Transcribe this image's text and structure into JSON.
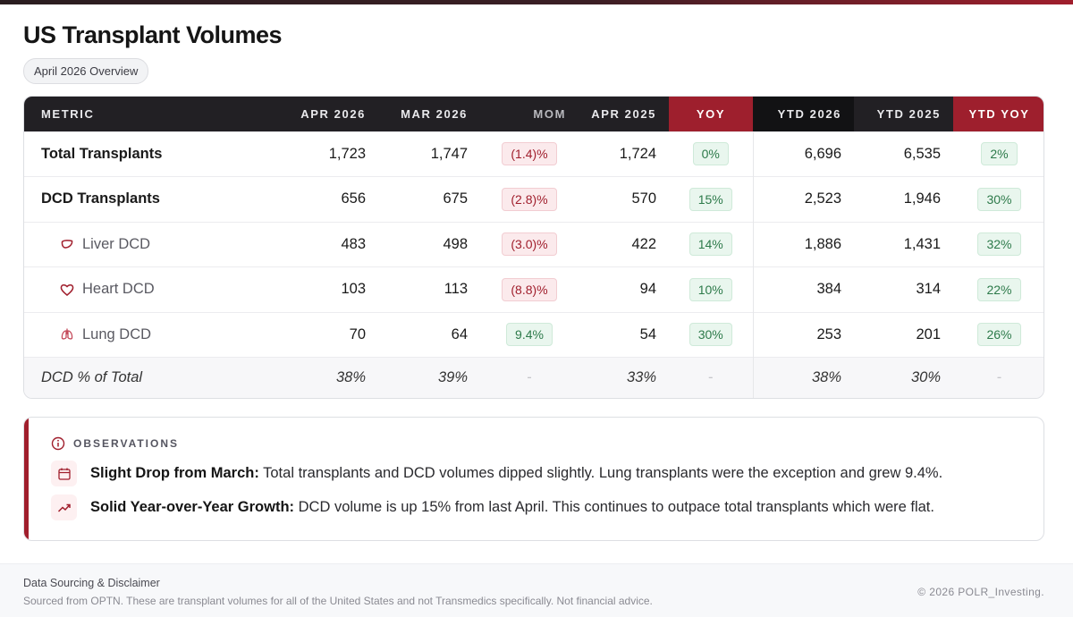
{
  "header": {
    "title": "US Transplant Volumes",
    "subtitle": "April 2026 Overview"
  },
  "colors": {
    "accent": "#a01e2c",
    "header_dark": "#222024",
    "positive": "#2d7a4a",
    "negative": "#a01e2c"
  },
  "table": {
    "columns": [
      "METRIC",
      "APR 2026",
      "MAR 2026",
      "MOM",
      "APR 2025",
      "YOY",
      "YTD 2026",
      "YTD 2025",
      "YTD YOY"
    ],
    "rows": [
      {
        "metric": "Total Transplants",
        "icon": "",
        "apr2026": "1,723",
        "mar2026": "1,747",
        "mom": "(1.4)%",
        "mom_tone": "neg",
        "apr2025": "1,724",
        "yoy": "0%",
        "yoy_tone": "pos",
        "ytd2026": "6,696",
        "ytd2025": "6,535",
        "ytdyoy": "2%",
        "ytdyoy_tone": "pos"
      },
      {
        "metric": "DCD Transplants",
        "icon": "",
        "apr2026": "656",
        "mar2026": "675",
        "mom": "(2.8)%",
        "mom_tone": "neg",
        "apr2025": "570",
        "yoy": "15%",
        "yoy_tone": "pos",
        "ytd2026": "2,523",
        "ytd2025": "1,946",
        "ytdyoy": "30%",
        "ytdyoy_tone": "pos"
      },
      {
        "metric": "Liver DCD",
        "icon": "liver-icon",
        "apr2026": "483",
        "mar2026": "498",
        "mom": "(3.0)%",
        "mom_tone": "neg",
        "apr2025": "422",
        "yoy": "14%",
        "yoy_tone": "pos",
        "ytd2026": "1,886",
        "ytd2025": "1,431",
        "ytdyoy": "32%",
        "ytdyoy_tone": "pos"
      },
      {
        "metric": "Heart DCD",
        "icon": "heart-icon",
        "apr2026": "103",
        "mar2026": "113",
        "mom": "(8.8)%",
        "mom_tone": "neg",
        "apr2025": "94",
        "yoy": "10%",
        "yoy_tone": "pos",
        "ytd2026": "384",
        "ytd2025": "314",
        "ytdyoy": "22%",
        "ytdyoy_tone": "pos"
      },
      {
        "metric": "Lung DCD",
        "icon": "lungs-icon",
        "apr2026": "70",
        "mar2026": "64",
        "mom": "9.4%",
        "mom_tone": "pos",
        "apr2025": "54",
        "yoy": "30%",
        "yoy_tone": "pos",
        "ytd2026": "253",
        "ytd2025": "201",
        "ytdyoy": "26%",
        "ytdyoy_tone": "pos"
      }
    ],
    "summary_row": {
      "metric": "DCD % of Total",
      "apr2026": "38%",
      "mar2026": "39%",
      "mom": "-",
      "apr2025": "33%",
      "yoy": "-",
      "ytd2026": "38%",
      "ytd2025": "30%",
      "ytdyoy": "-"
    }
  },
  "observations": {
    "label": "OBSERVATIONS",
    "icon": "info-icon",
    "items": [
      {
        "icon": "calendar-icon",
        "heading": "Slight Drop from March:",
        "text": " Total transplants and DCD volumes dipped slightly. Lung transplants were the exception and grew 9.4%."
      },
      {
        "icon": "trending-up-icon",
        "heading": "Solid Year-over-Year Growth:",
        "text": " DCD volume is up 15% from last April. This continues to outpace total transplants which were flat."
      }
    ]
  },
  "footer": {
    "title": "Data Sourcing & Disclaimer",
    "text": "Sourced from OPTN. These are transplant volumes for all of the United States and not Transmedics specifically. Not financial advice.",
    "copyright": "© 2026 POLR_Investing."
  }
}
